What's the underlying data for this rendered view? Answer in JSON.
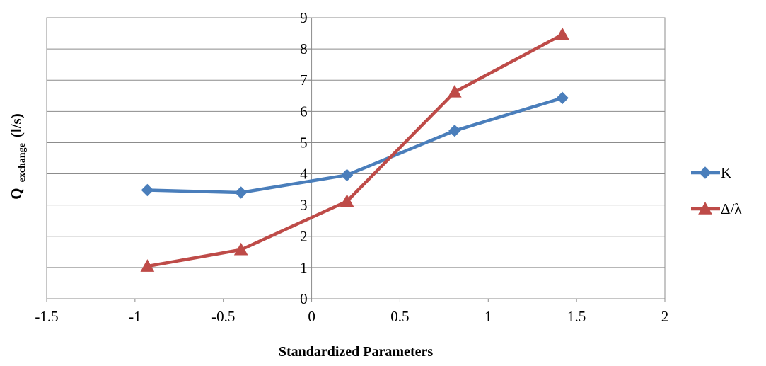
{
  "chart_data": {
    "type": "line",
    "title": "",
    "xlabel": "Standardized Parameters",
    "ylabel": {
      "main": "Q",
      "subscript": "exchange",
      "unit": "(l/s)"
    },
    "xlim": [
      -1.5,
      2
    ],
    "ylim": [
      0,
      9
    ],
    "x_ticks": [
      "-1.5",
      "-1",
      "-0.5",
      "0",
      "0.5",
      "1",
      "1.5",
      "2"
    ],
    "y_ticks": [
      "0",
      "1",
      "2",
      "3",
      "4",
      "5",
      "6",
      "7",
      "8",
      "9"
    ],
    "grid": "horizontal",
    "legend_position": "right",
    "series": [
      {
        "name": "K",
        "color": "#4A7EBB",
        "marker": "diamond",
        "x": [
          -0.93,
          -0.4,
          0.2,
          0.81,
          1.42
        ],
        "y": [
          3.48,
          3.4,
          3.96,
          5.38,
          6.43
        ]
      },
      {
        "name": "Δ/λ",
        "color": "#BE4B48",
        "marker": "triangle",
        "x": [
          -0.93,
          -0.4,
          0.2,
          0.81,
          1.42
        ],
        "y": [
          1.04,
          1.57,
          3.12,
          6.62,
          8.46
        ]
      }
    ]
  }
}
